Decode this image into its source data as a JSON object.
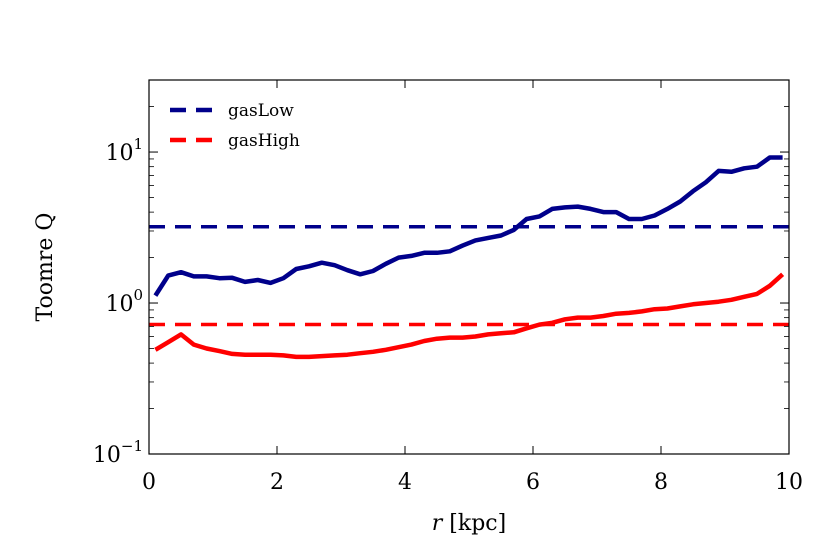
{
  "chart_data": {
    "type": "line",
    "title": "",
    "xlabel": "r [kpc]",
    "ylabel": "Toomre Q",
    "xlim": [
      0,
      10
    ],
    "ylim": [
      0.1,
      30
    ],
    "yscale": "log",
    "xticks": [
      0,
      2,
      4,
      6,
      8,
      10
    ],
    "yticks": [
      {
        "value": 0.1,
        "base": "10",
        "exp": "−1"
      },
      {
        "value": 1,
        "base": "10",
        "exp": "0"
      },
      {
        "value": 10,
        "base": "10",
        "exp": "1"
      }
    ],
    "legend_position": "top-left",
    "series": [
      {
        "name": "gasLow",
        "color": "#00008b",
        "x": [
          0.1,
          0.3,
          0.5,
          0.7,
          0.9,
          1.1,
          1.3,
          1.5,
          1.7,
          1.9,
          2.1,
          2.3,
          2.5,
          2.7,
          2.9,
          3.1,
          3.3,
          3.5,
          3.7,
          3.9,
          4.1,
          4.3,
          4.5,
          4.7,
          4.9,
          5.1,
          5.3,
          5.5,
          5.7,
          5.9,
          6.1,
          6.3,
          6.5,
          6.7,
          6.9,
          7.1,
          7.3,
          7.5,
          7.7,
          7.9,
          8.1,
          8.3,
          8.5,
          8.7,
          8.9,
          9.1,
          9.3,
          9.5,
          9.7,
          9.9
        ],
        "values": [
          1.12,
          1.52,
          1.6,
          1.5,
          1.5,
          1.46,
          1.47,
          1.38,
          1.42,
          1.36,
          1.46,
          1.68,
          1.75,
          1.85,
          1.78,
          1.65,
          1.55,
          1.63,
          1.82,
          2.0,
          2.05,
          2.15,
          2.15,
          2.2,
          2.4,
          2.6,
          2.7,
          2.8,
          3.05,
          3.6,
          3.75,
          4.2,
          4.3,
          4.35,
          4.2,
          4.0,
          4.0,
          3.6,
          3.6,
          3.8,
          4.2,
          4.7,
          5.5,
          6.3,
          7.5,
          7.4,
          7.8,
          8.0,
          9.2,
          9.2
        ],
        "reference_line": 3.2
      },
      {
        "name": "gasHigh",
        "color": "#ff0000",
        "x": [
          0.1,
          0.3,
          0.5,
          0.7,
          0.9,
          1.1,
          1.3,
          1.5,
          1.7,
          1.9,
          2.1,
          2.3,
          2.5,
          2.7,
          2.9,
          3.1,
          3.3,
          3.5,
          3.7,
          3.9,
          4.1,
          4.3,
          4.5,
          4.7,
          4.9,
          5.1,
          5.3,
          5.5,
          5.7,
          5.9,
          6.1,
          6.3,
          6.5,
          6.7,
          6.9,
          7.1,
          7.3,
          7.5,
          7.7,
          7.9,
          8.1,
          8.3,
          8.5,
          8.7,
          8.9,
          9.1,
          9.3,
          9.5,
          9.7,
          9.9
        ],
        "values": [
          0.49,
          0.55,
          0.62,
          0.53,
          0.5,
          0.48,
          0.46,
          0.455,
          0.455,
          0.455,
          0.45,
          0.44,
          0.44,
          0.445,
          0.45,
          0.455,
          0.465,
          0.475,
          0.49,
          0.51,
          0.53,
          0.56,
          0.58,
          0.59,
          0.59,
          0.6,
          0.62,
          0.63,
          0.64,
          0.68,
          0.72,
          0.74,
          0.78,
          0.8,
          0.8,
          0.82,
          0.85,
          0.86,
          0.88,
          0.91,
          0.92,
          0.95,
          0.98,
          1.0,
          1.02,
          1.05,
          1.1,
          1.15,
          1.3,
          1.55
        ],
        "reference_line": 0.72
      }
    ]
  }
}
